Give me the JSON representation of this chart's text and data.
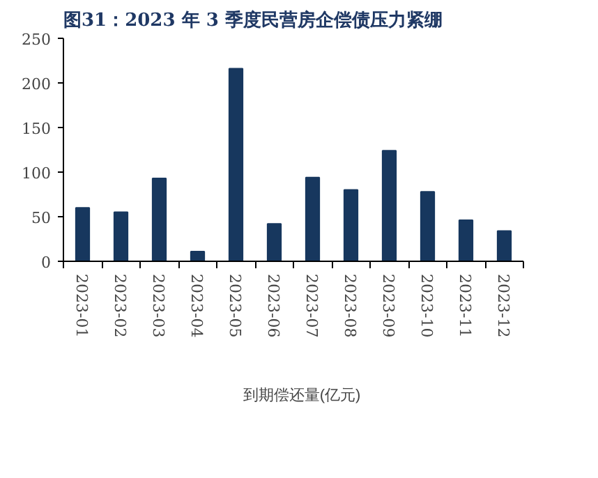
{
  "chart_data": {
    "type": "bar",
    "title": "图31：2023 年 3 季度民营房企偿债压力紧绷",
    "categories": [
      "2023-01",
      "2023-02",
      "2023-03",
      "2023-04",
      "2023-05",
      "2023-06",
      "2023-07",
      "2023-08",
      "2023-09",
      "2023-10",
      "2023-11",
      "2023-12"
    ],
    "series": [
      {
        "name": "到期偿还量(亿元)",
        "color": "#17375e",
        "values": [
          60,
          55,
          93,
          11,
          216,
          42,
          94,
          80,
          124,
          78,
          46,
          34
        ]
      }
    ],
    "ylim": [
      0,
      250
    ],
    "yticks": [
      0,
      50,
      100,
      150,
      200,
      250
    ],
    "grid": false,
    "legend": "bottom"
  }
}
